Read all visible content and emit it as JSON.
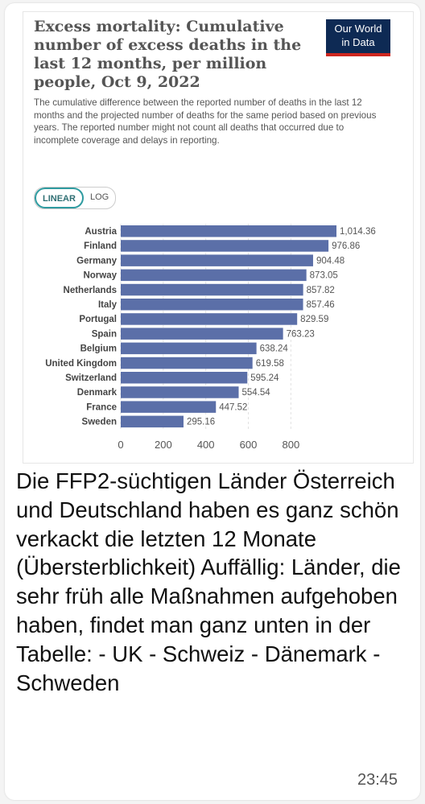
{
  "message": {
    "text": "Die FFP2-süchtigen Länder Österreich und Deutschland haben es ganz schön verkackt die letzten 12 Monate (Übersterblichkeit)   Auffällig: Länder, die sehr früh alle Maßnahmen aufgehoben haben, findet man ganz unten in der Tabelle:  - UK  - Schweiz  - Dänemark  - Schweden",
    "time": "23:45"
  },
  "chart_card": {
    "title": "Excess mortality: Cumulative number of excess deaths in the last 12 months, per million people, Oct 9, 2022",
    "subtitle": "The cumulative difference between the reported number of deaths in the last 12 months and the projected number of deaths for the same period based on previous years. The reported number might not count all deaths that occurred due to incomplete coverage and delays in reporting.",
    "logo_line1": "Our World",
    "logo_line2": "in Data",
    "scale_linear": "LINEAR",
    "scale_log": "LOG"
  },
  "chart_data": {
    "type": "bar",
    "orientation": "horizontal",
    "categories": [
      "Austria",
      "Finland",
      "Germany",
      "Norway",
      "Netherlands",
      "Italy",
      "Portugal",
      "Spain",
      "Belgium",
      "United Kingdom",
      "Switzerland",
      "Denmark",
      "France",
      "Sweden"
    ],
    "values": [
      1014.36,
      976.86,
      904.48,
      873.05,
      857.82,
      857.46,
      829.59,
      763.23,
      638.24,
      619.58,
      595.24,
      554.54,
      447.52,
      295.16
    ],
    "value_labels": [
      "1,014.36",
      "976.86",
      "904.48",
      "873.05",
      "857.82",
      "857.46",
      "829.59",
      "763.23",
      "638.24",
      "619.58",
      "595.24",
      "554.54",
      "447.52",
      "295.16"
    ],
    "x_ticks": [
      "0",
      "200",
      "400",
      "600",
      "800"
    ],
    "xlim": [
      0,
      1014.36
    ],
    "grid": true,
    "bar_color": "#5b6fa8"
  }
}
